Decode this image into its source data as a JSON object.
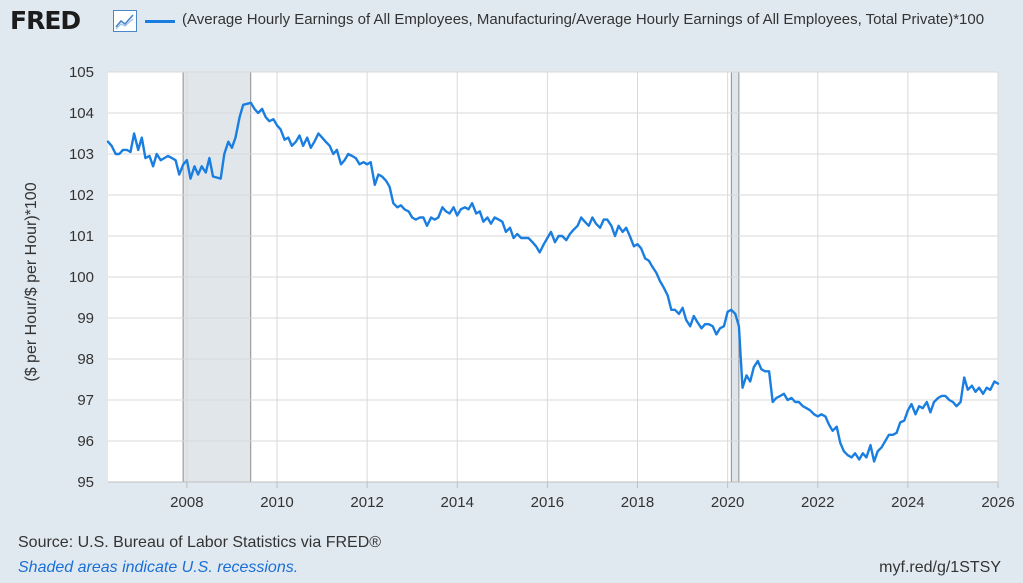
{
  "brand": {
    "logo_text": "FRED",
    "logo_icon": "chart-trend-icon"
  },
  "legend": {
    "series_name": "(Average Hourly Earnings of All Employees, Manufacturing/Average Hourly Earnings of All Employees, Total Private)*100",
    "color": "#1a7ee0"
  },
  "footer": {
    "source": "Source: U.S. Bureau of Labor Statistics via FRED®",
    "recession_note": "Shaded areas indicate U.S. recessions.",
    "short_url": "myf.red/g/1STSY"
  },
  "chart_data": {
    "type": "line",
    "ylabel": "($ per Hour/$ per Hour)*100",
    "xlabel": "",
    "ylim": [
      95,
      105
    ],
    "xlim": [
      2006.25,
      2026.0
    ],
    "y_ticks": [
      95,
      96,
      97,
      98,
      99,
      100,
      101,
      102,
      103,
      104,
      105
    ],
    "x_ticks": [
      2008,
      2010,
      2012,
      2014,
      2016,
      2018,
      2020,
      2022,
      2024,
      2026
    ],
    "grid": true,
    "recessions": [
      [
        2007.917,
        2009.417
      ],
      [
        2020.083,
        2020.25
      ]
    ],
    "series": [
      {
        "name": "(Average Hourly Earnings of All Employees, Manufacturing/Average Hourly Earnings of All Employees, Total Private)*100",
        "color": "#1a7ee0",
        "points": [
          [
            2006.25,
            103.3
          ],
          [
            2006.33,
            103.2
          ],
          [
            2006.42,
            103.0
          ],
          [
            2006.5,
            103.0
          ],
          [
            2006.58,
            103.1
          ],
          [
            2006.67,
            103.1
          ],
          [
            2006.75,
            103.05
          ],
          [
            2006.83,
            103.5
          ],
          [
            2006.92,
            103.1
          ],
          [
            2007.0,
            103.4
          ],
          [
            2007.08,
            102.9
          ],
          [
            2007.17,
            102.95
          ],
          [
            2007.25,
            102.7
          ],
          [
            2007.33,
            103.0
          ],
          [
            2007.42,
            102.85
          ],
          [
            2007.5,
            102.9
          ],
          [
            2007.58,
            102.95
          ],
          [
            2007.67,
            102.9
          ],
          [
            2007.75,
            102.85
          ],
          [
            2007.83,
            102.5
          ],
          [
            2007.92,
            102.75
          ],
          [
            2008.0,
            102.85
          ],
          [
            2008.08,
            102.4
          ],
          [
            2008.17,
            102.7
          ],
          [
            2008.25,
            102.5
          ],
          [
            2008.33,
            102.7
          ],
          [
            2008.42,
            102.55
          ],
          [
            2008.5,
            102.9
          ],
          [
            2008.58,
            102.45
          ],
          [
            2008.75,
            102.4
          ],
          [
            2008.83,
            103.0
          ],
          [
            2008.92,
            103.3
          ],
          [
            2009.0,
            103.15
          ],
          [
            2009.08,
            103.4
          ],
          [
            2009.17,
            103.9
          ],
          [
            2009.25,
            104.2
          ],
          [
            2009.42,
            104.25
          ],
          [
            2009.5,
            104.1
          ],
          [
            2009.58,
            104.0
          ],
          [
            2009.67,
            104.1
          ],
          [
            2009.75,
            103.9
          ],
          [
            2009.83,
            103.8
          ],
          [
            2009.92,
            103.85
          ],
          [
            2010.0,
            103.7
          ],
          [
            2010.08,
            103.6
          ],
          [
            2010.17,
            103.35
          ],
          [
            2010.25,
            103.4
          ],
          [
            2010.33,
            103.2
          ],
          [
            2010.42,
            103.3
          ],
          [
            2010.5,
            103.45
          ],
          [
            2010.58,
            103.2
          ],
          [
            2010.67,
            103.4
          ],
          [
            2010.75,
            103.15
          ],
          [
            2010.83,
            103.3
          ],
          [
            2010.92,
            103.5
          ],
          [
            2011.0,
            103.4
          ],
          [
            2011.08,
            103.3
          ],
          [
            2011.17,
            103.2
          ],
          [
            2011.25,
            103.0
          ],
          [
            2011.33,
            103.1
          ],
          [
            2011.42,
            102.75
          ],
          [
            2011.5,
            102.85
          ],
          [
            2011.58,
            103.0
          ],
          [
            2011.67,
            102.95
          ],
          [
            2011.75,
            102.9
          ],
          [
            2011.83,
            102.75
          ],
          [
            2011.92,
            102.8
          ],
          [
            2012.0,
            102.75
          ],
          [
            2012.08,
            102.8
          ],
          [
            2012.17,
            102.25
          ],
          [
            2012.25,
            102.5
          ],
          [
            2012.33,
            102.45
          ],
          [
            2012.42,
            102.35
          ],
          [
            2012.5,
            102.2
          ],
          [
            2012.58,
            101.8
          ],
          [
            2012.67,
            101.7
          ],
          [
            2012.75,
            101.75
          ],
          [
            2012.83,
            101.65
          ],
          [
            2012.92,
            101.6
          ],
          [
            2013.0,
            101.45
          ],
          [
            2013.08,
            101.4
          ],
          [
            2013.17,
            101.45
          ],
          [
            2013.25,
            101.45
          ],
          [
            2013.33,
            101.25
          ],
          [
            2013.42,
            101.45
          ],
          [
            2013.5,
            101.4
          ],
          [
            2013.58,
            101.45
          ],
          [
            2013.67,
            101.7
          ],
          [
            2013.75,
            101.6
          ],
          [
            2013.83,
            101.55
          ],
          [
            2013.92,
            101.7
          ],
          [
            2014.0,
            101.5
          ],
          [
            2014.08,
            101.65
          ],
          [
            2014.17,
            101.7
          ],
          [
            2014.25,
            101.65
          ],
          [
            2014.33,
            101.8
          ],
          [
            2014.42,
            101.55
          ],
          [
            2014.5,
            101.6
          ],
          [
            2014.58,
            101.35
          ],
          [
            2014.67,
            101.45
          ],
          [
            2014.75,
            101.3
          ],
          [
            2014.83,
            101.45
          ],
          [
            2014.92,
            101.4
          ],
          [
            2015.0,
            101.35
          ],
          [
            2015.08,
            101.1
          ],
          [
            2015.17,
            101.2
          ],
          [
            2015.25,
            100.95
          ],
          [
            2015.33,
            101.05
          ],
          [
            2015.42,
            100.95
          ],
          [
            2015.5,
            100.95
          ],
          [
            2015.58,
            100.95
          ],
          [
            2015.67,
            100.85
          ],
          [
            2015.75,
            100.75
          ],
          [
            2015.83,
            100.6
          ],
          [
            2015.92,
            100.8
          ],
          [
            2016.0,
            100.95
          ],
          [
            2016.08,
            101.1
          ],
          [
            2016.17,
            100.85
          ],
          [
            2016.25,
            101.0
          ],
          [
            2016.33,
            101.0
          ],
          [
            2016.42,
            100.9
          ],
          [
            2016.5,
            101.05
          ],
          [
            2016.58,
            101.15
          ],
          [
            2016.67,
            101.25
          ],
          [
            2016.75,
            101.45
          ],
          [
            2016.83,
            101.35
          ],
          [
            2016.92,
            101.25
          ],
          [
            2017.0,
            101.45
          ],
          [
            2017.08,
            101.3
          ],
          [
            2017.17,
            101.2
          ],
          [
            2017.25,
            101.4
          ],
          [
            2017.33,
            101.4
          ],
          [
            2017.42,
            101.25
          ],
          [
            2017.5,
            101.0
          ],
          [
            2017.58,
            101.25
          ],
          [
            2017.67,
            101.1
          ],
          [
            2017.75,
            101.2
          ],
          [
            2017.83,
            101.0
          ],
          [
            2017.92,
            100.75
          ],
          [
            2018.0,
            100.8
          ],
          [
            2018.08,
            100.7
          ],
          [
            2018.17,
            100.45
          ],
          [
            2018.25,
            100.4
          ],
          [
            2018.33,
            100.25
          ],
          [
            2018.42,
            100.1
          ],
          [
            2018.5,
            99.9
          ],
          [
            2018.58,
            99.75
          ],
          [
            2018.67,
            99.55
          ],
          [
            2018.75,
            99.2
          ],
          [
            2018.83,
            99.2
          ],
          [
            2018.92,
            99.1
          ],
          [
            2019.0,
            99.25
          ],
          [
            2019.08,
            98.95
          ],
          [
            2019.17,
            98.8
          ],
          [
            2019.25,
            99.05
          ],
          [
            2019.33,
            98.9
          ],
          [
            2019.42,
            98.75
          ],
          [
            2019.5,
            98.85
          ],
          [
            2019.58,
            98.85
          ],
          [
            2019.67,
            98.8
          ],
          [
            2019.75,
            98.6
          ],
          [
            2019.83,
            98.75
          ],
          [
            2019.92,
            98.8
          ],
          [
            2020.0,
            99.15
          ],
          [
            2020.08,
            99.2
          ],
          [
            2020.17,
            99.1
          ],
          [
            2020.25,
            98.8
          ],
          [
            2020.33,
            97.3
          ],
          [
            2020.42,
            97.6
          ],
          [
            2020.5,
            97.45
          ],
          [
            2020.58,
            97.8
          ],
          [
            2020.67,
            97.95
          ],
          [
            2020.75,
            97.75
          ],
          [
            2020.83,
            97.7
          ],
          [
            2020.92,
            97.7
          ],
          [
            2021.0,
            96.95
          ],
          [
            2021.08,
            97.05
          ],
          [
            2021.17,
            97.1
          ],
          [
            2021.25,
            97.15
          ],
          [
            2021.33,
            97.0
          ],
          [
            2021.42,
            97.05
          ],
          [
            2021.5,
            96.95
          ],
          [
            2021.58,
            96.95
          ],
          [
            2021.67,
            96.85
          ],
          [
            2021.75,
            96.8
          ],
          [
            2021.83,
            96.75
          ],
          [
            2021.92,
            96.65
          ],
          [
            2022.0,
            96.6
          ],
          [
            2022.08,
            96.65
          ],
          [
            2022.17,
            96.6
          ],
          [
            2022.25,
            96.4
          ],
          [
            2022.33,
            96.25
          ],
          [
            2022.42,
            96.35
          ],
          [
            2022.5,
            95.95
          ],
          [
            2022.58,
            95.75
          ],
          [
            2022.67,
            95.65
          ],
          [
            2022.75,
            95.6
          ],
          [
            2022.83,
            95.7
          ],
          [
            2022.92,
            95.55
          ],
          [
            2023.0,
            95.7
          ],
          [
            2023.08,
            95.6
          ],
          [
            2023.17,
            95.9
          ],
          [
            2023.25,
            95.5
          ],
          [
            2023.33,
            95.75
          ],
          [
            2023.42,
            95.85
          ],
          [
            2023.5,
            96.0
          ],
          [
            2023.58,
            96.15
          ],
          [
            2023.67,
            96.15
          ],
          [
            2023.75,
            96.2
          ],
          [
            2023.83,
            96.45
          ],
          [
            2023.92,
            96.5
          ],
          [
            2024.0,
            96.75
          ],
          [
            2024.08,
            96.9
          ],
          [
            2024.17,
            96.65
          ],
          [
            2024.25,
            96.85
          ],
          [
            2024.33,
            96.8
          ],
          [
            2024.42,
            96.95
          ],
          [
            2024.5,
            96.7
          ],
          [
            2024.58,
            96.95
          ],
          [
            2024.67,
            97.05
          ],
          [
            2024.75,
            97.1
          ],
          [
            2024.83,
            97.1
          ],
          [
            2024.92,
            97.0
          ],
          [
            2025.0,
            96.95
          ],
          [
            2025.08,
            96.85
          ],
          [
            2025.17,
            96.95
          ],
          [
            2025.25,
            97.55
          ],
          [
            2025.33,
            97.25
          ],
          [
            2025.42,
            97.35
          ],
          [
            2025.5,
            97.2
          ],
          [
            2025.58,
            97.3
          ],
          [
            2025.67,
            97.15
          ],
          [
            2025.75,
            97.3
          ],
          [
            2025.83,
            97.25
          ],
          [
            2025.92,
            97.45
          ],
          [
            2026.0,
            97.4
          ]
        ]
      }
    ]
  }
}
